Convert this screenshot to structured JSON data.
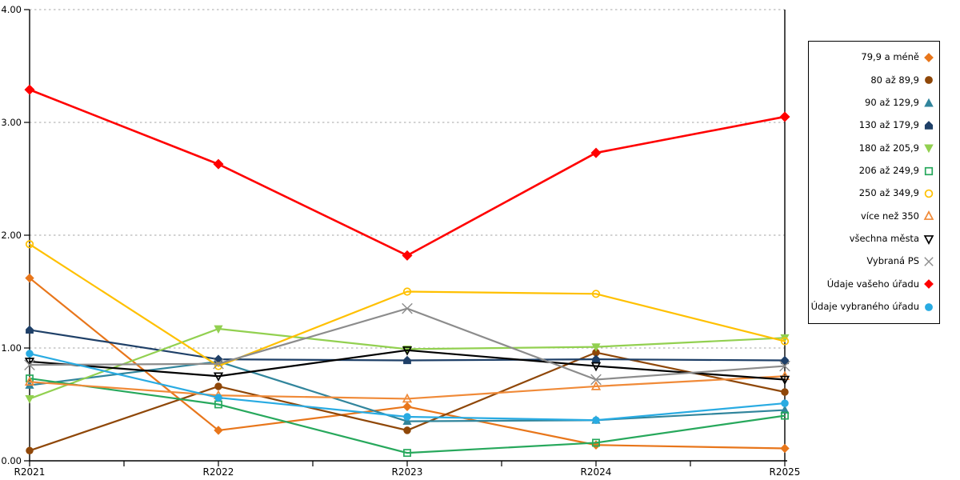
{
  "chart_data": {
    "type": "line",
    "title": "",
    "xlabel": "",
    "ylabel": "",
    "categories": [
      "R2021",
      "R2022",
      "R2023",
      "R2024",
      "R2025"
    ],
    "ylim": [
      0,
      4
    ],
    "y_tick_labels": [
      "0.00",
      "1.00",
      "2.00",
      "3.00",
      "4.00"
    ],
    "grid": "horizontal-dotted",
    "legend_position": "right-outside",
    "background": "#FFFFFF",
    "axis_color": "#000000",
    "gridline_color": "#A6A6A6",
    "series": [
      {
        "name": "79,9 a méně",
        "color": "#E8761B",
        "marker": "diamond",
        "filled": true,
        "values": [
          1.62,
          0.27,
          0.48,
          0.14,
          0.11
        ]
      },
      {
        "name": "80 až 89,9",
        "color": "#8F4708",
        "marker": "circle",
        "filled": true,
        "values": [
          0.09,
          0.66,
          0.27,
          0.96,
          0.61
        ]
      },
      {
        "name": "90 až 129,9",
        "color": "#31859C",
        "marker": "triangle-up",
        "filled": true,
        "values": [
          0.67,
          0.88,
          0.35,
          0.36,
          0.45
        ]
      },
      {
        "name": "130 až 179,9",
        "color": "#1F4068",
        "marker": "pentagon",
        "filled": true,
        "values": [
          1.16,
          0.9,
          0.89,
          0.9,
          0.89
        ]
      },
      {
        "name": "180 až 205,9",
        "color": "#92D050",
        "marker": "triangle-down",
        "filled": true,
        "values": [
          0.55,
          1.17,
          0.99,
          1.01,
          1.09
        ]
      },
      {
        "name": "206 až 249,9",
        "color": "#27A85C",
        "marker": "square",
        "filled": false,
        "values": [
          0.73,
          0.5,
          0.07,
          0.16,
          0.4
        ]
      },
      {
        "name": "250 až 349,9",
        "color": "#FFC000",
        "marker": "circle",
        "filled": false,
        "values": [
          1.92,
          0.84,
          1.5,
          1.48,
          1.06
        ]
      },
      {
        "name": "více než 350",
        "color": "#F08A38",
        "marker": "triangle-up",
        "filled": false,
        "values": [
          0.7,
          0.58,
          0.55,
          0.66,
          0.75
        ]
      },
      {
        "name": "všechna města",
        "color": "#000000",
        "marker": "triangle-down",
        "filled": false,
        "values": [
          0.88,
          0.75,
          0.98,
          0.84,
          0.72
        ]
      },
      {
        "name": "Vybraná PS",
        "color": "#8C8C8C",
        "marker": "x",
        "filled": false,
        "values": [
          0.85,
          0.86,
          1.35,
          0.72,
          0.84
        ]
      },
      {
        "name": "Údaje vašeho úřadu",
        "color": "#FF0000",
        "marker": "diamond",
        "filled": true,
        "values": [
          3.29,
          2.63,
          1.82,
          2.73,
          3.05
        ]
      },
      {
        "name": "Údaje vybraného úřadu",
        "color": "#29ABE2",
        "marker": "circle",
        "filled": true,
        "values": [
          0.95,
          0.56,
          0.39,
          0.36,
          0.51
        ]
      }
    ]
  }
}
